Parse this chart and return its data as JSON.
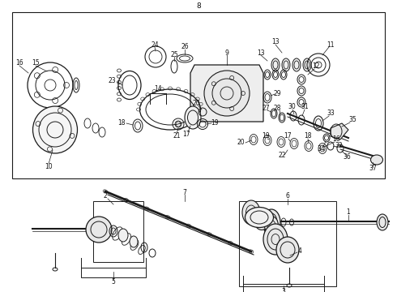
{
  "bg_color": "#ffffff",
  "line_color": "#1a1a1a",
  "text_color": "#111111",
  "fig_width": 4.9,
  "fig_height": 3.6,
  "dpi": 100
}
